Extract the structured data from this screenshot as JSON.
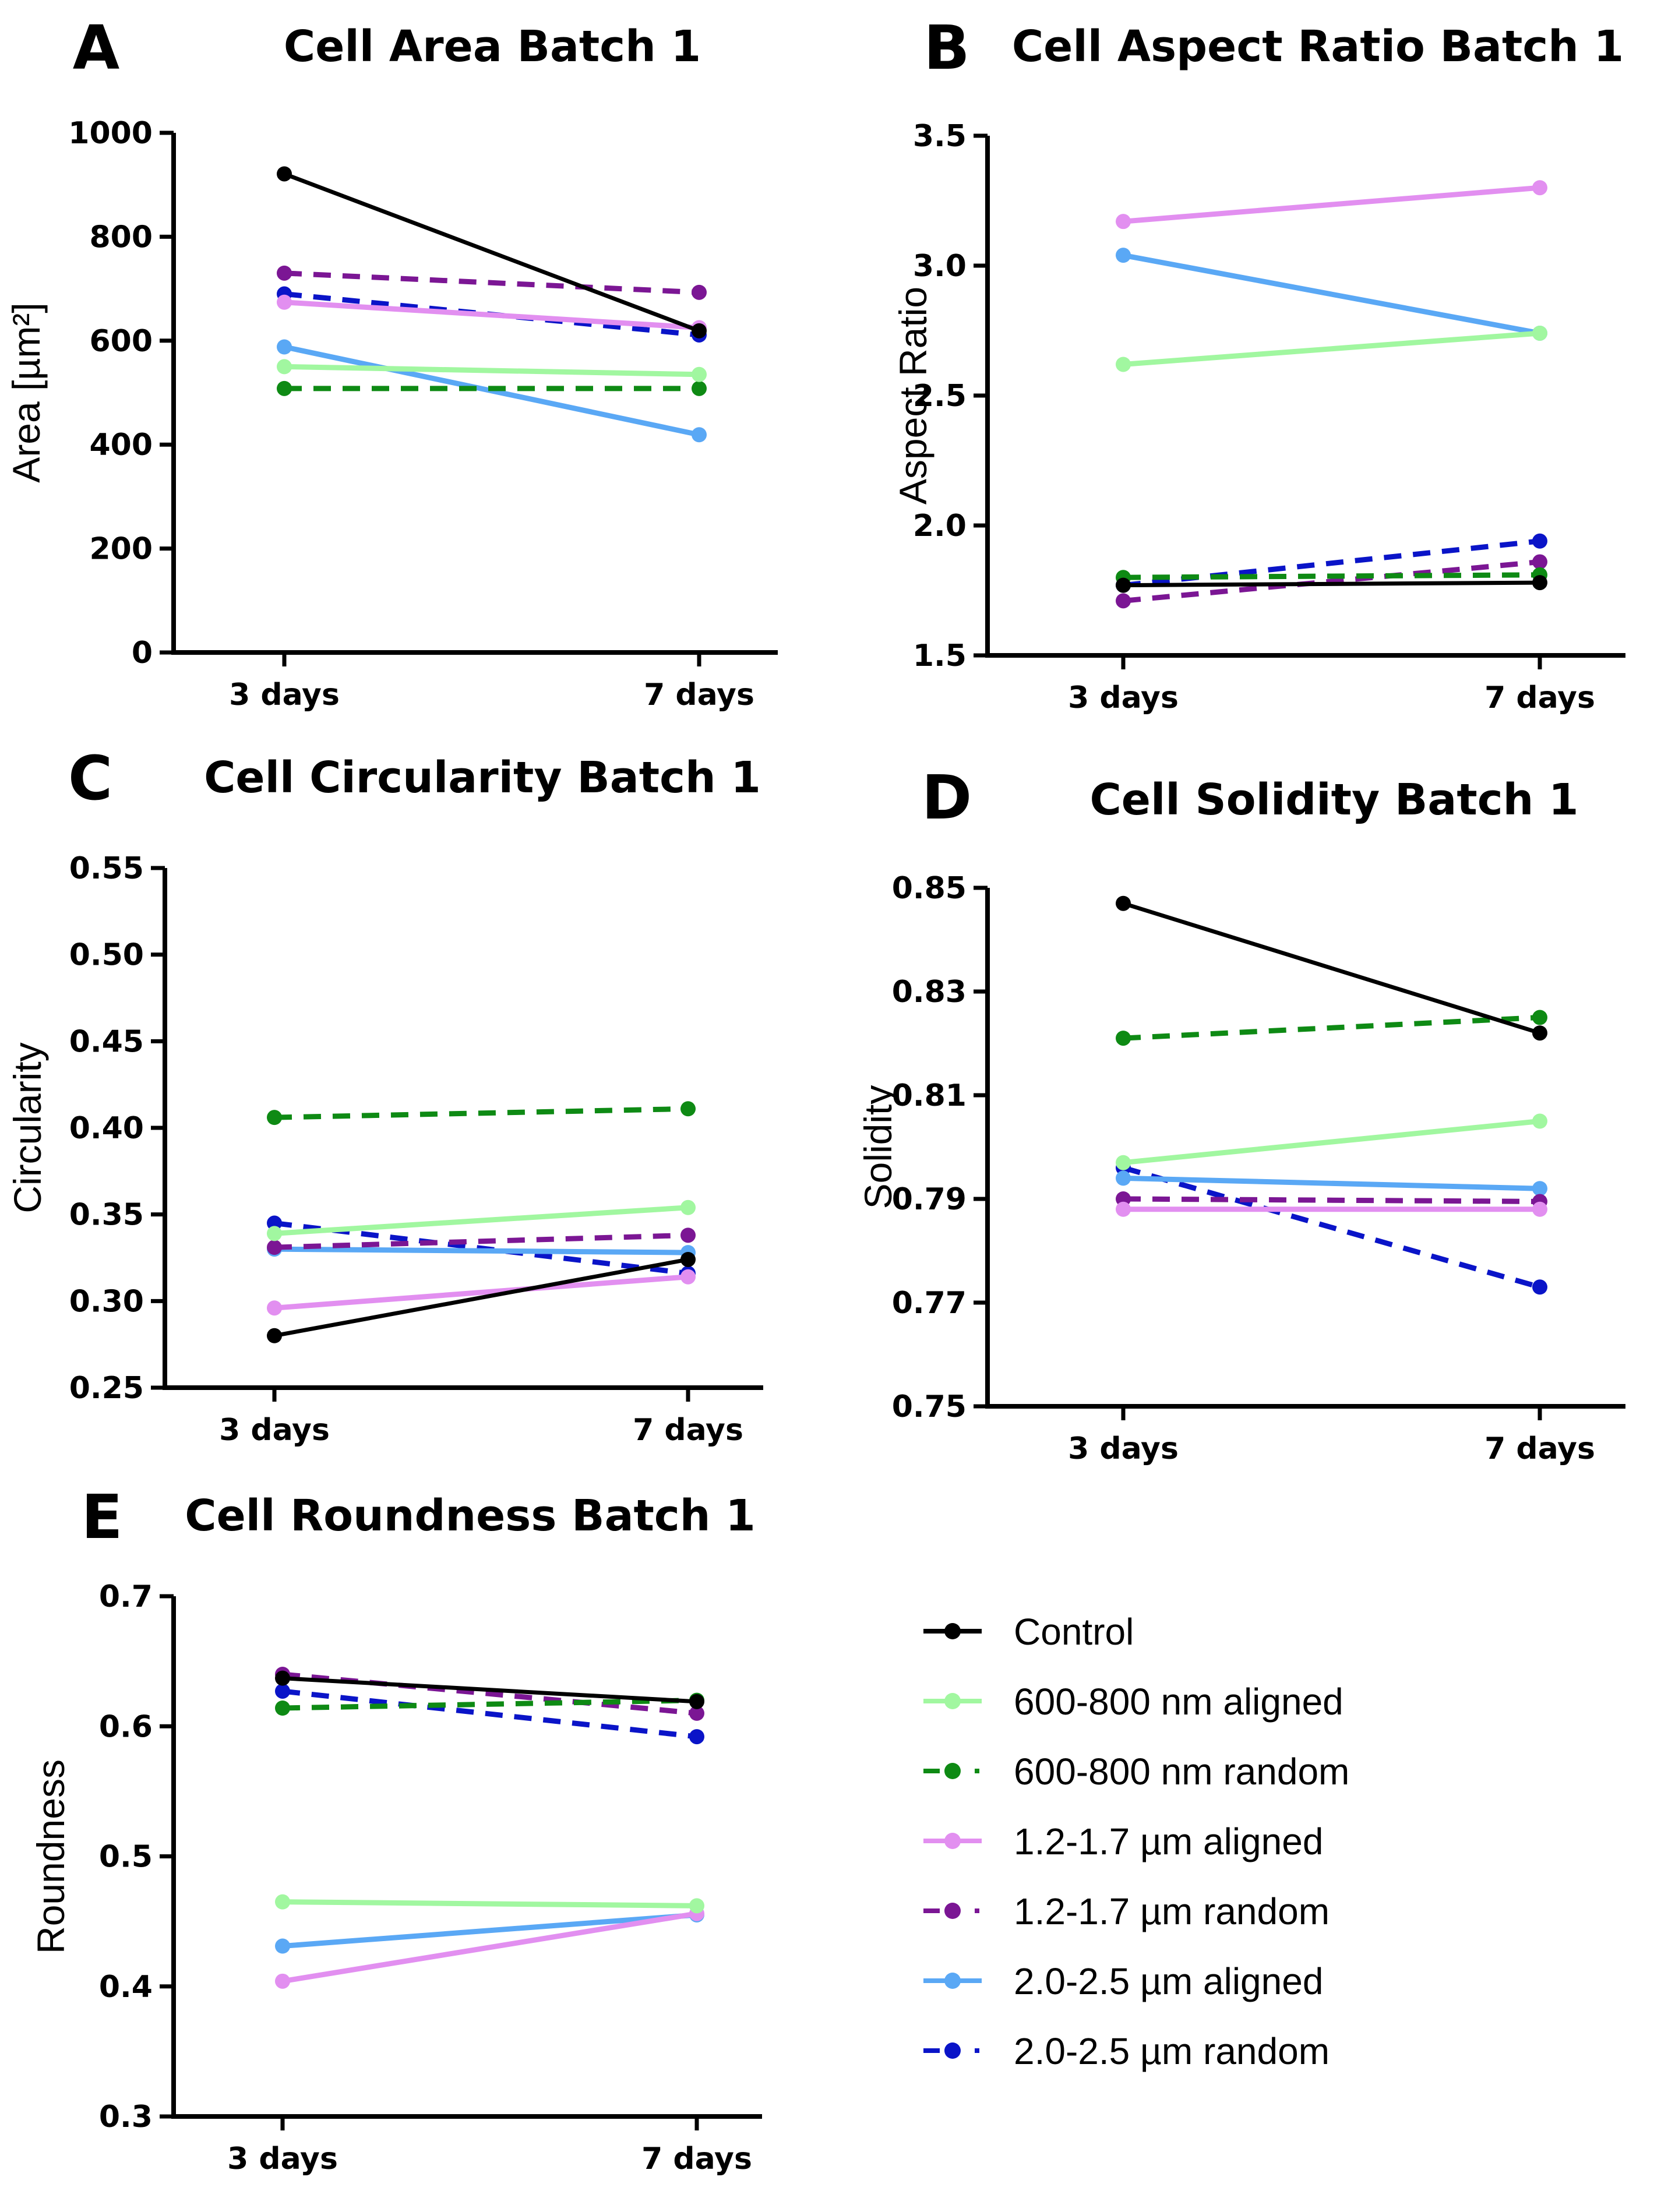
{
  "figure": {
    "categories": [
      "3 days",
      "7 days"
    ],
    "series_styles": [
      {
        "name": "Control",
        "color": "#000000",
        "dashed": false
      },
      {
        "name": "600-800 nm aligned",
        "color": "#a1f7a0",
        "dashed": false
      },
      {
        "name": "600-800 nm random",
        "color": "#0e8a14",
        "dashed": true
      },
      {
        "name": "1.2-1.7 µm aligned",
        "color": "#e28ff0",
        "dashed": false
      },
      {
        "name": "1.2-1.7 µm random",
        "color": "#7b1694",
        "dashed": true
      },
      {
        "name": "2.0-2.5 µm aligned",
        "color": "#5aa8f5",
        "dashed": false
      },
      {
        "name": "2.0-2.5 µm random",
        "color": "#0a14c8",
        "dashed": true
      }
    ],
    "legend_position": "bottom-right"
  },
  "chart_data": [
    {
      "panel": "A",
      "type": "line",
      "title": "Cell Area Batch 1",
      "xlabel": "",
      "ylabel": "Area [µm²]",
      "categories": [
        "3 days",
        "7 days"
      ],
      "ylim": [
        0,
        1000
      ],
      "yticks": [
        0,
        200,
        400,
        600,
        800,
        1000
      ],
      "ytick_labels": [
        "0",
        "200",
        "400",
        "600",
        "800",
        "1000"
      ],
      "grid": false,
      "series": [
        {
          "name": "Control",
          "values": [
            921,
            619
          ]
        },
        {
          "name": "600-800 nm aligned",
          "values": [
            550,
            535
          ]
        },
        {
          "name": "600-800 nm random",
          "values": [
            508,
            508
          ]
        },
        {
          "name": "1.2-1.7 µm aligned",
          "values": [
            674,
            625
          ]
        },
        {
          "name": "1.2-1.7 µm random",
          "values": [
            730,
            693
          ]
        },
        {
          "name": "2.0-2.5 µm aligned",
          "values": [
            588,
            419
          ]
        },
        {
          "name": "2.0-2.5 µm random",
          "values": [
            690,
            611
          ]
        }
      ]
    },
    {
      "panel": "B",
      "type": "line",
      "title": "Cell Aspect  Ratio Batch 1",
      "xlabel": "",
      "ylabel": "Aspect  Ratio",
      "categories": [
        "3 days",
        "7 days"
      ],
      "ylim": [
        1.5,
        3.5
      ],
      "yticks": [
        1.5,
        2.0,
        2.5,
        3.0,
        3.5
      ],
      "ytick_labels": [
        "1.5",
        "2.0",
        "2.5",
        "3.0",
        "3.5"
      ],
      "grid": false,
      "series": [
        {
          "name": "Control",
          "values": [
            1.77,
            1.78
          ]
        },
        {
          "name": "600-800 nm aligned",
          "values": [
            2.62,
            2.74
          ]
        },
        {
          "name": "600-800 nm random",
          "values": [
            1.8,
            1.81
          ]
        },
        {
          "name": "1.2-1.7 µm aligned",
          "values": [
            3.17,
            3.3
          ]
        },
        {
          "name": "1.2-1.7 µm random",
          "values": [
            1.71,
            1.86
          ]
        },
        {
          "name": "2.0-2.5 µm aligned",
          "values": [
            3.04,
            2.74
          ]
        },
        {
          "name": "2.0-2.5 µm random",
          "values": [
            1.77,
            1.94
          ]
        }
      ]
    },
    {
      "panel": "C",
      "type": "line",
      "title": "Cell Circularity Batch 1",
      "xlabel": "",
      "ylabel": "Circularity",
      "categories": [
        "3 days",
        "7 days"
      ],
      "ylim": [
        0.25,
        0.55
      ],
      "yticks": [
        0.25,
        0.3,
        0.35,
        0.4,
        0.45,
        0.5,
        0.55
      ],
      "ytick_labels": [
        "0.25",
        "0.30",
        "0.35",
        "0.40",
        "0.45",
        "0.50",
        "0.55"
      ],
      "grid": false,
      "series": [
        {
          "name": "Control",
          "values": [
            0.28,
            0.324
          ]
        },
        {
          "name": "600-800 nm aligned",
          "values": [
            0.339,
            0.354
          ]
        },
        {
          "name": "600-800 nm random",
          "values": [
            0.406,
            0.411
          ]
        },
        {
          "name": "1.2-1.7 µm aligned",
          "values": [
            0.296,
            0.314
          ]
        },
        {
          "name": "1.2-1.7 µm random",
          "values": [
            0.331,
            0.338
          ]
        },
        {
          "name": "2.0-2.5 µm aligned",
          "values": [
            0.33,
            0.328
          ]
        },
        {
          "name": "2.0-2.5 µm random",
          "values": [
            0.345,
            0.316
          ]
        }
      ]
    },
    {
      "panel": "D",
      "type": "line",
      "title": "Cell Solidity Batch 1",
      "xlabel": "",
      "ylabel": "Solidity",
      "categories": [
        "3 days",
        "7 days"
      ],
      "ylim": [
        0.75,
        0.85
      ],
      "yticks": [
        0.75,
        0.77,
        0.79,
        0.81,
        0.83,
        0.85
      ],
      "ytick_labels": [
        "0.75",
        "0.77",
        "0.79",
        "0.81",
        "0.83",
        "0.85"
      ],
      "grid": false,
      "series": [
        {
          "name": "Control",
          "values": [
            0.847,
            0.822
          ]
        },
        {
          "name": "600-800 nm aligned",
          "values": [
            0.797,
            0.805
          ]
        },
        {
          "name": "600-800 nm random",
          "values": [
            0.821,
            0.825
          ]
        },
        {
          "name": "1.2-1.7 µm aligned",
          "values": [
            0.788,
            0.788
          ]
        },
        {
          "name": "1.2-1.7 µm random",
          "values": [
            0.79,
            0.7895
          ]
        },
        {
          "name": "2.0-2.5 µm aligned",
          "values": [
            0.794,
            0.792
          ]
        },
        {
          "name": "2.0-2.5 µm random",
          "values": [
            0.796,
            0.773
          ]
        }
      ]
    },
    {
      "panel": "E",
      "type": "line",
      "title": "Cell Roundness Batch 1",
      "xlabel": "",
      "ylabel": "Roundness",
      "categories": [
        "3 days",
        "7 days"
      ],
      "ylim": [
        0.3,
        0.7
      ],
      "yticks": [
        0.3,
        0.4,
        0.5,
        0.6,
        0.7
      ],
      "ytick_labels": [
        "0.3",
        "0.4",
        "0.5",
        "0.6",
        "0.7"
      ],
      "grid": false,
      "series": [
        {
          "name": "Control",
          "values": [
            0.637,
            0.619
          ]
        },
        {
          "name": "600-800 nm aligned",
          "values": [
            0.465,
            0.462
          ]
        },
        {
          "name": "600-800 nm random",
          "values": [
            0.614,
            0.62
          ]
        },
        {
          "name": "1.2-1.7 µm aligned",
          "values": [
            0.404,
            0.456
          ]
        },
        {
          "name": "1.2-1.7 µm random",
          "values": [
            0.64,
            0.61
          ]
        },
        {
          "name": "2.0-2.5 µm aligned",
          "values": [
            0.431,
            0.455
          ]
        },
        {
          "name": "2.0-2.5 µm random",
          "values": [
            0.627,
            0.592
          ]
        }
      ]
    }
  ]
}
